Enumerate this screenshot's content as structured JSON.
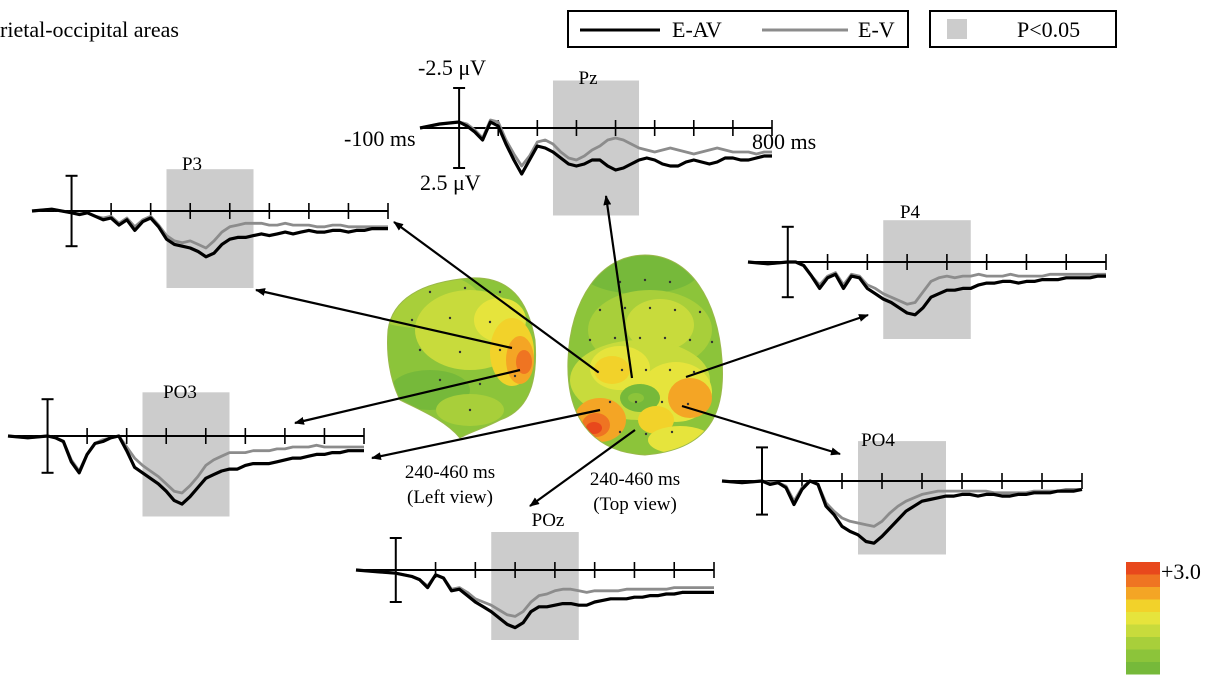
{
  "figure": {
    "title_fragment": "rietal-occipital areas",
    "legend": {
      "series_1": "E-AV",
      "series_2": "E-V",
      "significance": "P<0.05",
      "colors": {
        "E-AV": "#000000",
        "E-V": "#8c8c8c",
        "significance": "#cccccc"
      }
    },
    "scale": {
      "y_top": "-2.5 μV",
      "y_bottom": "2.5 μV",
      "x_start": "-100 ms",
      "x_end": "800 ms"
    },
    "maps": {
      "left": {
        "window": "240-460 ms",
        "view": "(Left view)"
      },
      "top": {
        "window": "240-460 ms",
        "view": "(Top view)"
      }
    },
    "colorbar": {
      "max_label": "+3.0",
      "colors": [
        "#e8481c",
        "#ef7422",
        "#f4a525",
        "#f2d22a",
        "#e6e43c",
        "#c8db3c",
        "#a8cf3a",
        "#8cc43a",
        "#76b93a"
      ]
    }
  },
  "chart_data": {
    "type": "line",
    "title": "",
    "xlabel": "",
    "ylabel": "",
    "x_range_ms": [
      -100,
      800
    ],
    "y_range_uV": [
      -2.5,
      2.5
    ],
    "y_axis_inverted": true,
    "tick_step_ms": 100,
    "significant_window_ms": [
      240,
      460
    ],
    "series": [
      "E-AV",
      "E-V"
    ],
    "panels": [
      {
        "name": "Pz",
        "x": [
          -100,
          -50,
          0,
          20,
          40,
          60,
          80,
          100,
          120,
          140,
          160,
          180,
          200,
          220,
          240,
          260,
          280,
          300,
          320,
          340,
          360,
          380,
          400,
          420,
          440,
          460,
          480,
          500,
          520,
          540,
          560,
          580,
          600,
          620,
          640,
          660,
          680,
          700,
          720,
          740,
          760,
          780,
          800
        ],
        "E-AV": [
          0,
          -0.2,
          -0.3,
          -0.1,
          0.2,
          0.6,
          -0.3,
          -0.1,
          0.8,
          1.6,
          2.3,
          1.6,
          0.9,
          1.0,
          1.2,
          1.5,
          1.8,
          1.9,
          1.8,
          1.6,
          1.6,
          1.9,
          2.1,
          2.0,
          1.8,
          1.6,
          1.5,
          1.6,
          1.8,
          1.9,
          1.9,
          1.7,
          1.6,
          1.7,
          1.8,
          1.7,
          1.5,
          1.5,
          1.6,
          1.6,
          1.5,
          1.4,
          1.4
        ],
        "E-V": [
          0,
          -0.2,
          -0.3,
          -0.2,
          0.1,
          0.5,
          -0.4,
          -0.3,
          0.6,
          1.3,
          1.9,
          1.4,
          0.7,
          0.6,
          0.8,
          1.2,
          1.5,
          1.6,
          1.4,
          1.1,
          0.9,
          0.6,
          0.5,
          0.6,
          0.8,
          1.0,
          1.1,
          1.2,
          1.1,
          1.0,
          1.1,
          1.2,
          1.3,
          1.2,
          1.1,
          1.0,
          1.1,
          1.2,
          1.2,
          1.2,
          1.3,
          1.2,
          1.2
        ]
      },
      {
        "name": "P3",
        "x": [
          -100,
          -50,
          0,
          20,
          40,
          60,
          80,
          100,
          120,
          140,
          160,
          180,
          200,
          220,
          240,
          260,
          280,
          300,
          320,
          340,
          360,
          380,
          400,
          420,
          440,
          460,
          480,
          500,
          520,
          540,
          560,
          580,
          600,
          620,
          640,
          660,
          680,
          700,
          720,
          740,
          760,
          780,
          800
        ],
        "E-AV": [
          0,
          -0.1,
          0.1,
          0.2,
          0.1,
          0.3,
          0.5,
          0.4,
          0.8,
          0.5,
          1.1,
          0.6,
          0.4,
          0.9,
          1.6,
          1.9,
          2.0,
          2.1,
          2.3,
          2.6,
          2.4,
          1.9,
          1.6,
          1.5,
          1.5,
          1.4,
          1.3,
          1.4,
          1.3,
          1.2,
          1.3,
          1.2,
          1.1,
          1.2,
          1.2,
          1.1,
          1.1,
          1.2,
          1.1,
          1.1,
          1.0,
          1.0,
          1.0
        ],
        "E-V": [
          0,
          -0.1,
          0.1,
          0.2,
          0.1,
          0.3,
          0.4,
          0.3,
          0.7,
          0.4,
          0.9,
          0.5,
          0.3,
          0.8,
          1.4,
          1.7,
          1.8,
          1.7,
          1.9,
          2.1,
          1.7,
          1.2,
          0.9,
          0.8,
          0.7,
          0.7,
          0.7,
          0.8,
          0.8,
          0.7,
          0.8,
          0.8,
          0.8,
          0.9,
          0.9,
          0.8,
          0.8,
          0.9,
          0.9,
          0.9,
          0.9,
          0.9,
          0.9
        ]
      },
      {
        "name": "P4",
        "x": [
          -100,
          -50,
          0,
          20,
          40,
          60,
          80,
          100,
          120,
          140,
          160,
          180,
          200,
          220,
          240,
          260,
          280,
          300,
          320,
          340,
          360,
          380,
          400,
          420,
          440,
          460,
          480,
          500,
          520,
          540,
          560,
          580,
          600,
          620,
          640,
          660,
          680,
          700,
          720,
          740,
          760,
          780,
          800
        ],
        "E-AV": [
          0,
          0.1,
          0,
          0,
          0.2,
          0.8,
          1.5,
          0.9,
          0.7,
          1.5,
          0.8,
          0.9,
          1.5,
          1.8,
          2.1,
          2.3,
          2.6,
          2.9,
          3.0,
          2.6,
          2.0,
          1.8,
          1.6,
          1.6,
          1.5,
          1.5,
          1.3,
          1.2,
          1.2,
          1.1,
          1.1,
          1.2,
          1.1,
          1.1,
          1.0,
          1.0,
          1.0,
          0.9,
          0.9,
          0.9,
          0.9,
          0.8,
          0.8
        ],
        "E-V": [
          0,
          0.1,
          0,
          0,
          0.2,
          0.8,
          1.3,
          0.8,
          0.6,
          1.3,
          0.7,
          0.8,
          1.3,
          1.5,
          1.8,
          2.0,
          2.2,
          2.4,
          2.3,
          1.7,
          1.1,
          0.9,
          0.8,
          0.9,
          0.8,
          0.8,
          0.7,
          0.8,
          0.8,
          0.8,
          0.7,
          0.8,
          0.8,
          0.8,
          0.8,
          0.7,
          0.7,
          0.7,
          0.7,
          0.7,
          0.7,
          0.7,
          0.7
        ]
      },
      {
        "name": "PO3",
        "x": [
          -100,
          -50,
          0,
          20,
          40,
          60,
          80,
          100,
          120,
          140,
          160,
          180,
          200,
          220,
          240,
          260,
          280,
          300,
          320,
          340,
          360,
          380,
          400,
          420,
          440,
          460,
          480,
          500,
          520,
          540,
          560,
          580,
          600,
          620,
          640,
          660,
          680,
          700,
          720,
          740,
          760,
          780,
          800
        ],
        "E-AV": [
          0,
          0.1,
          0,
          0.1,
          0.3,
          1.4,
          2.0,
          1.0,
          0.4,
          0.3,
          0.1,
          0.0,
          0.8,
          1.7,
          2.0,
          2.3,
          2.6,
          3.0,
          3.5,
          3.7,
          3.3,
          2.8,
          2.3,
          2.1,
          1.9,
          1.8,
          1.8,
          1.6,
          1.5,
          1.5,
          1.5,
          1.4,
          1.3,
          1.2,
          1.2,
          1.1,
          1.0,
          1.0,
          0.9,
          0.9,
          0.8,
          0.8,
          0.8
        ],
        "E-V": [
          0,
          0.1,
          0,
          0.1,
          0.3,
          1.3,
          1.9,
          1.0,
          0.4,
          0.2,
          0.1,
          0.0,
          0.6,
          1.2,
          1.6,
          1.9,
          2.2,
          2.6,
          3.0,
          3.1,
          2.7,
          2.2,
          1.6,
          1.3,
          1.1,
          0.9,
          0.9,
          0.9,
          0.8,
          0.8,
          0.8,
          0.7,
          0.7,
          0.6,
          0.6,
          0.6,
          0.5,
          0.6,
          0.6,
          0.6,
          0.6,
          0.6,
          0.6
        ]
      },
      {
        "name": "PO4",
        "x": [
          -100,
          -50,
          0,
          20,
          40,
          60,
          80,
          100,
          120,
          140,
          160,
          180,
          200,
          220,
          240,
          260,
          280,
          300,
          320,
          340,
          360,
          380,
          400,
          420,
          440,
          460,
          480,
          500,
          520,
          540,
          560,
          580,
          600,
          620,
          640,
          660,
          680,
          700,
          720,
          740,
          760,
          780,
          800
        ],
        "E-AV": [
          0,
          0.1,
          0,
          0.2,
          0.1,
          0.4,
          1.4,
          0.5,
          0.0,
          0.2,
          1.5,
          2.0,
          2.7,
          3.0,
          3.2,
          3.6,
          3.7,
          3.3,
          2.8,
          2.3,
          1.8,
          1.5,
          1.2,
          1.1,
          1.0,
          0.9,
          0.9,
          0.8,
          0.8,
          0.9,
          0.8,
          0.8,
          0.9,
          0.9,
          0.8,
          0.8,
          0.7,
          0.7,
          0.7,
          0.6,
          0.6,
          0.6,
          0.5
        ],
        "E-V": [
          0,
          0.1,
          0,
          0.1,
          0.1,
          0.3,
          1.2,
          0.4,
          0.0,
          0.2,
          1.3,
          1.8,
          2.2,
          2.4,
          2.5,
          2.6,
          2.7,
          2.4,
          1.9,
          1.5,
          1.2,
          1.0,
          0.8,
          0.7,
          0.6,
          0.6,
          0.6,
          0.6,
          0.6,
          0.6,
          0.6,
          0.7,
          0.7,
          0.7,
          0.7,
          0.7,
          0.6,
          0.6,
          0.6,
          0.6,
          0.5,
          0.5,
          0.5
        ]
      },
      {
        "name": "POz",
        "x": [
          -100,
          -50,
          0,
          20,
          40,
          60,
          80,
          100,
          120,
          140,
          160,
          180,
          200,
          220,
          240,
          260,
          280,
          300,
          320,
          340,
          360,
          380,
          400,
          420,
          440,
          460,
          480,
          500,
          520,
          540,
          560,
          580,
          600,
          620,
          640,
          660,
          680,
          700,
          720,
          740,
          760,
          780,
          800
        ],
        "E-AV": [
          0,
          0.1,
          0.2,
          0.3,
          0.4,
          0.6,
          1.1,
          0.3,
          0.5,
          1.3,
          1.2,
          1.6,
          2.0,
          2.3,
          2.6,
          3.0,
          3.4,
          3.6,
          3.3,
          2.6,
          2.3,
          2.3,
          2.2,
          2.1,
          2.1,
          2.2,
          2.2,
          2.0,
          1.9,
          1.8,
          1.8,
          1.8,
          1.7,
          1.7,
          1.6,
          1.6,
          1.5,
          1.5,
          1.4,
          1.4,
          1.4,
          1.4,
          1.4
        ],
        "E-V": [
          0,
          0.1,
          0.2,
          0.3,
          0.4,
          0.6,
          1.0,
          0.3,
          0.5,
          1.2,
          1.1,
          1.4,
          1.8,
          2.0,
          2.2,
          2.5,
          2.8,
          2.9,
          2.6,
          2.0,
          1.6,
          1.5,
          1.3,
          1.2,
          1.2,
          1.3,
          1.4,
          1.3,
          1.3,
          1.3,
          1.3,
          1.2,
          1.2,
          1.2,
          1.2,
          1.2,
          1.2,
          1.1,
          1.1,
          1.1,
          1.1,
          1.1,
          1.1
        ]
      }
    ]
  }
}
